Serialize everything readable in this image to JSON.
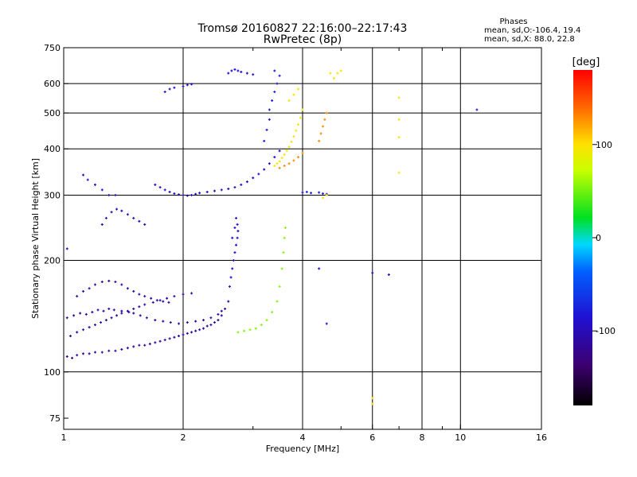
{
  "chart_data": {
    "type": "scatter",
    "title": "Tromsø 20160827 22:16:00–22:17:43",
    "subtitle": "RwPretec (8p)",
    "xlabel": "Frequency [MHz]",
    "ylabel": "Stationary phase Virtual Height [km]",
    "x_scale": "log",
    "y_scale": "log",
    "xlim": [
      1,
      16
    ],
    "ylim": [
      70,
      750
    ],
    "x_ticks": [
      1,
      2,
      4,
      6,
      8,
      10,
      16
    ],
    "x_tick_labels": [
      "1",
      "2",
      "4",
      "6",
      "8",
      "10",
      "16"
    ],
    "x_minor_ticks": [
      3,
      5,
      7,
      9
    ],
    "y_ticks": [
      75,
      100,
      200,
      300,
      400,
      500,
      600,
      750
    ],
    "y_tick_labels": [
      "75",
      "100",
      "200",
      "300",
      "400",
      "500",
      "600",
      "750"
    ],
    "grid": true,
    "stats": {
      "heading": "Phases",
      "line_o": "mean, sd,O:-106.4, 19.4",
      "line_x": "mean, sd,X:  88.0, 22.8"
    },
    "colorbar": {
      "label": "[deg]",
      "range": [
        -180,
        180
      ],
      "ticks": [
        100,
        0,
        -100
      ],
      "tick_labels": [
        "100",
        "0",
        "-100"
      ],
      "colormap": "rainbow: black-purple-blue-cyan-green-yellow-orange-red"
    },
    "series": [
      {
        "phase": -125,
        "points": [
          [
            1.02,
            110
          ],
          [
            1.05,
            109
          ],
          [
            1.08,
            111
          ],
          [
            1.12,
            112
          ],
          [
            1.16,
            112
          ],
          [
            1.2,
            113
          ],
          [
            1.25,
            113
          ],
          [
            1.3,
            114
          ],
          [
            1.35,
            114
          ],
          [
            1.4,
            115
          ],
          [
            1.45,
            116
          ],
          [
            1.5,
            117
          ],
          [
            1.55,
            118
          ],
          [
            1.6,
            118
          ],
          [
            1.65,
            119
          ],
          [
            1.7,
            120
          ],
          [
            1.75,
            121
          ],
          [
            1.8,
            122
          ],
          [
            1.85,
            123
          ],
          [
            1.9,
            124
          ],
          [
            1.95,
            125
          ],
          [
            2.0,
            126
          ],
          [
            2.05,
            127
          ],
          [
            2.1,
            128
          ],
          [
            2.15,
            129
          ],
          [
            2.2,
            130
          ],
          [
            2.25,
            131
          ],
          [
            2.3,
            133
          ],
          [
            2.35,
            134
          ],
          [
            2.4,
            136
          ],
          [
            2.45,
            138
          ],
          [
            2.5,
            142
          ],
          [
            2.55,
            148
          ],
          [
            2.6,
            155
          ]
        ]
      },
      {
        "phase": -125,
        "points": [
          [
            1.02,
            140
          ],
          [
            1.06,
            142
          ],
          [
            1.1,
            144
          ],
          [
            1.14,
            143
          ],
          [
            1.18,
            145
          ],
          [
            1.22,
            147
          ],
          [
            1.26,
            146
          ],
          [
            1.3,
            148
          ],
          [
            1.34,
            147
          ],
          [
            1.4,
            146
          ],
          [
            1.46,
            145
          ],
          [
            1.5,
            144
          ],
          [
            1.56,
            142
          ],
          [
            1.62,
            140
          ],
          [
            1.7,
            138
          ],
          [
            1.78,
            137
          ],
          [
            1.86,
            136
          ],
          [
            1.95,
            135
          ],
          [
            2.05,
            136
          ],
          [
            2.15,
            137
          ],
          [
            2.25,
            138
          ],
          [
            2.35,
            140
          ],
          [
            2.45,
            143
          ],
          [
            2.5,
            146
          ]
        ]
      },
      {
        "phase": -125,
        "points": [
          [
            1.04,
            125
          ],
          [
            1.08,
            128
          ],
          [
            1.12,
            130
          ],
          [
            1.16,
            132
          ],
          [
            1.2,
            134
          ],
          [
            1.24,
            136
          ],
          [
            1.28,
            138
          ],
          [
            1.32,
            140
          ],
          [
            1.36,
            142
          ],
          [
            1.4,
            144
          ],
          [
            1.45,
            146
          ],
          [
            1.5,
            148
          ],
          [
            1.55,
            150
          ],
          [
            1.6,
            152
          ],
          [
            1.68,
            154
          ],
          [
            1.75,
            156
          ],
          [
            1.82,
            158
          ],
          [
            1.9,
            160
          ],
          [
            2.0,
            162
          ],
          [
            2.1,
            163
          ]
        ]
      },
      {
        "phase": -125,
        "points": [
          [
            1.08,
            160
          ],
          [
            1.12,
            165
          ],
          [
            1.16,
            168
          ],
          [
            1.2,
            172
          ],
          [
            1.25,
            175
          ],
          [
            1.3,
            176
          ],
          [
            1.35,
            175
          ],
          [
            1.4,
            172
          ],
          [
            1.45,
            168
          ],
          [
            1.5,
            165
          ],
          [
            1.55,
            162
          ],
          [
            1.6,
            160
          ],
          [
            1.66,
            158
          ],
          [
            1.72,
            156
          ],
          [
            1.78,
            155
          ],
          [
            1.84,
            154
          ]
        ]
      },
      {
        "phase": -120,
        "points": [
          [
            1.25,
            250
          ],
          [
            1.28,
            260
          ],
          [
            1.32,
            270
          ],
          [
            1.36,
            275
          ],
          [
            1.4,
            272
          ],
          [
            1.45,
            266
          ],
          [
            1.5,
            260
          ],
          [
            1.55,
            255
          ],
          [
            1.6,
            250
          ]
        ]
      },
      {
        "phase": -115,
        "points": [
          [
            1.7,
            320
          ],
          [
            1.75,
            315
          ],
          [
            1.8,
            310
          ],
          [
            1.85,
            306
          ],
          [
            1.9,
            303
          ],
          [
            1.95,
            301
          ],
          [
            2.0,
            300
          ],
          [
            2.05,
            299
          ],
          [
            2.1,
            300
          ],
          [
            2.15,
            302
          ],
          [
            2.2,
            304
          ],
          [
            2.3,
            306
          ],
          [
            2.4,
            308
          ],
          [
            2.5,
            310
          ],
          [
            2.6,
            312
          ],
          [
            2.7,
            315
          ],
          [
            2.8,
            320
          ],
          [
            2.9,
            326
          ],
          [
            3.0,
            334
          ],
          [
            3.1,
            342
          ],
          [
            3.2,
            352
          ],
          [
            3.3,
            365
          ],
          [
            3.4,
            380
          ],
          [
            3.5,
            395
          ]
        ]
      },
      {
        "phase": -110,
        "points": [
          [
            2.62,
            170
          ],
          [
            2.64,
            180
          ],
          [
            2.66,
            190
          ],
          [
            2.68,
            200
          ],
          [
            2.7,
            210
          ],
          [
            2.72,
            220
          ],
          [
            2.74,
            230
          ],
          [
            2.75,
            240
          ],
          [
            2.74,
            250
          ],
          [
            2.72,
            260
          ],
          [
            2.7,
            245
          ],
          [
            2.66,
            230
          ]
        ]
      },
      {
        "phase": -105,
        "points": [
          [
            3.2,
            420
          ],
          [
            3.25,
            450
          ],
          [
            3.3,
            480
          ],
          [
            3.3,
            510
          ],
          [
            3.35,
            540
          ],
          [
            3.4,
            570
          ],
          [
            3.45,
            600
          ],
          [
            3.5,
            630
          ],
          [
            3.4,
            650
          ]
        ]
      },
      {
        "phase": -110,
        "points": [
          [
            2.6,
            640
          ],
          [
            2.65,
            650
          ],
          [
            2.7,
            655
          ],
          [
            2.75,
            650
          ],
          [
            2.8,
            645
          ],
          [
            2.9,
            640
          ],
          [
            3.0,
            635
          ]
        ]
      },
      {
        "phase": -105,
        "points": [
          [
            4.0,
            305
          ],
          [
            4.1,
            306
          ],
          [
            4.2,
            304
          ],
          [
            4.4,
            305
          ],
          [
            4.5,
            303
          ],
          [
            4.6,
            302
          ]
        ]
      },
      {
        "phase": -110,
        "points": [
          [
            1.12,
            340
          ],
          [
            1.15,
            330
          ],
          [
            1.2,
            320
          ],
          [
            1.25,
            310
          ],
          [
            1.3,
            300
          ],
          [
            1.35,
            300
          ],
          [
            1.8,
            570
          ],
          [
            1.85,
            580
          ],
          [
            1.9,
            585
          ],
          [
            2.0,
            590
          ],
          [
            2.05,
            595
          ],
          [
            2.1,
            598
          ]
        ]
      },
      {
        "phase": -110,
        "points": [
          [
            1.02,
            215
          ],
          [
            4.4,
            190
          ],
          [
            6.0,
            185
          ],
          [
            6.6,
            183
          ],
          [
            4.6,
            135
          ],
          [
            11.0,
            510
          ]
        ]
      },
      {
        "phase": 40,
        "points": [
          [
            2.75,
            128
          ],
          [
            2.85,
            129
          ],
          [
            2.95,
            130
          ],
          [
            3.05,
            131
          ],
          [
            3.15,
            134
          ],
          [
            3.25,
            138
          ],
          [
            3.35,
            145
          ],
          [
            3.45,
            155
          ],
          [
            3.5,
            170
          ],
          [
            3.55,
            190
          ],
          [
            3.58,
            210
          ],
          [
            3.6,
            230
          ],
          [
            3.62,
            245
          ]
        ]
      },
      {
        "phase": 95,
        "points": [
          [
            3.4,
            360
          ],
          [
            3.45,
            365
          ],
          [
            3.5,
            370
          ],
          [
            3.55,
            378
          ],
          [
            3.6,
            386
          ],
          [
            3.65,
            395
          ],
          [
            3.7,
            405
          ],
          [
            3.75,
            418
          ],
          [
            3.8,
            432
          ],
          [
            3.85,
            448
          ],
          [
            3.9,
            465
          ],
          [
            3.95,
            485
          ],
          [
            4.0,
            510
          ],
          [
            3.7,
            540
          ],
          [
            3.8,
            560
          ],
          [
            3.9,
            580
          ]
        ]
      },
      {
        "phase": 130,
        "points": [
          [
            3.5,
            355
          ],
          [
            3.6,
            360
          ],
          [
            3.7,
            365
          ],
          [
            3.8,
            372
          ],
          [
            3.9,
            380
          ],
          [
            4.0,
            390
          ],
          [
            4.4,
            420
          ],
          [
            4.45,
            440
          ],
          [
            4.5,
            460
          ],
          [
            4.55,
            480
          ],
          [
            4.6,
            500
          ]
        ]
      },
      {
        "phase": 95,
        "points": [
          [
            4.8,
            620
          ],
          [
            4.9,
            640
          ],
          [
            5.0,
            650
          ],
          [
            4.7,
            640
          ],
          [
            7.0,
            550
          ],
          [
            7.0,
            480
          ],
          [
            7.0,
            430
          ],
          [
            7.0,
            345
          ],
          [
            6.0,
            85
          ],
          [
            6.0,
            82
          ],
          [
            4.5,
            295
          ],
          [
            4.6,
            300
          ]
        ]
      }
    ]
  }
}
